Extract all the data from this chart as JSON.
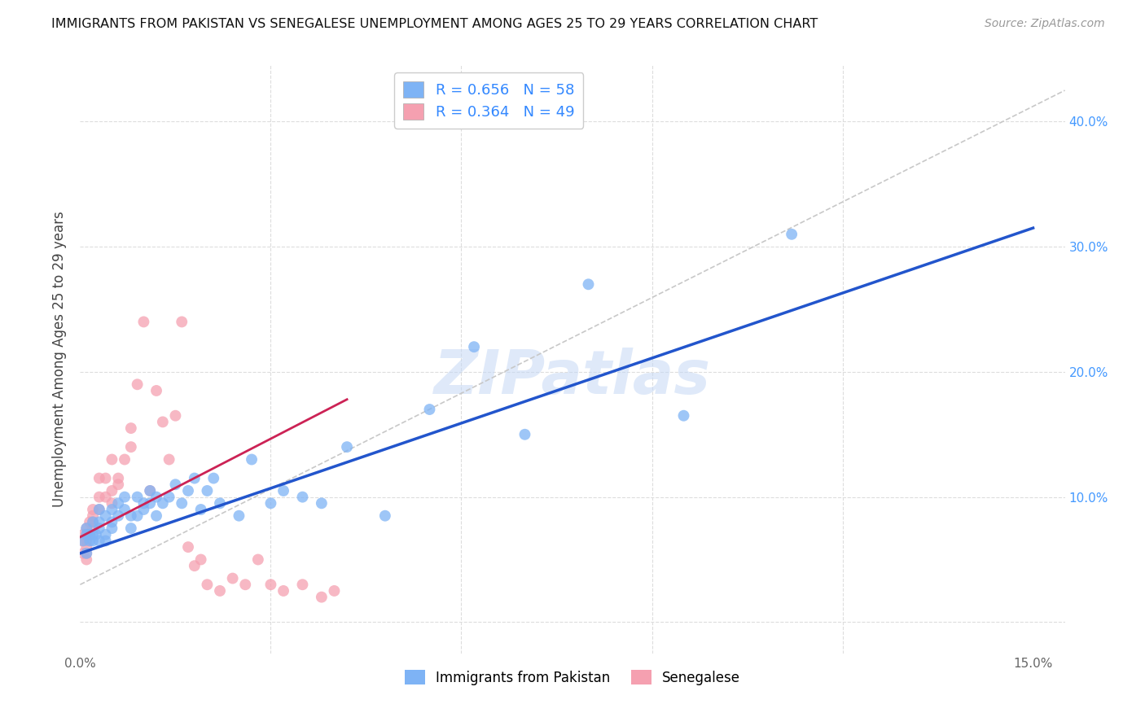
{
  "title": "IMMIGRANTS FROM PAKISTAN VS SENEGALESE UNEMPLOYMENT AMONG AGES 25 TO 29 YEARS CORRELATION CHART",
  "source": "Source: ZipAtlas.com",
  "ylabel": "Unemployment Among Ages 25 to 29 years",
  "xlim": [
    0.0,
    0.155
  ],
  "ylim": [
    -0.025,
    0.445
  ],
  "xtick_positions": [
    0.0,
    0.03,
    0.06,
    0.09,
    0.12,
    0.15
  ],
  "xtick_labels": [
    "0.0%",
    "",
    "",
    "",
    "",
    "15.0%"
  ],
  "ytick_positions": [
    0.0,
    0.1,
    0.2,
    0.3,
    0.4
  ],
  "ytick_labels": [
    "",
    "10.0%",
    "20.0%",
    "30.0%",
    "40.0%"
  ],
  "blue_scatter_color": "#7eb3f5",
  "pink_scatter_color": "#f5a0b0",
  "blue_line_color": "#2255cc",
  "pink_line_color": "#cc2255",
  "diag_color": "#c8c8c8",
  "r_blue": 0.656,
  "n_blue": 58,
  "r_pink": 0.364,
  "n_pink": 49,
  "watermark": "ZIPatlas",
  "blue_r_color": "#3388ff",
  "blue_n_color": "#3388ff",
  "pink_r_color": "#ff6688",
  "pink_n_color": "#3388ff",
  "blue_points_x": [
    0.0005,
    0.001,
    0.001,
    0.001,
    0.0015,
    0.0015,
    0.002,
    0.002,
    0.002,
    0.0025,
    0.003,
    0.003,
    0.003,
    0.003,
    0.004,
    0.004,
    0.004,
    0.005,
    0.005,
    0.005,
    0.006,
    0.006,
    0.007,
    0.007,
    0.008,
    0.008,
    0.009,
    0.009,
    0.01,
    0.01,
    0.011,
    0.011,
    0.012,
    0.012,
    0.013,
    0.014,
    0.015,
    0.016,
    0.017,
    0.018,
    0.019,
    0.02,
    0.021,
    0.022,
    0.025,
    0.027,
    0.03,
    0.032,
    0.035,
    0.038,
    0.042,
    0.048,
    0.055,
    0.062,
    0.07,
    0.08,
    0.095,
    0.112
  ],
  "blue_points_y": [
    0.065,
    0.07,
    0.055,
    0.075,
    0.07,
    0.065,
    0.07,
    0.065,
    0.08,
    0.07,
    0.075,
    0.08,
    0.065,
    0.09,
    0.085,
    0.07,
    0.065,
    0.08,
    0.09,
    0.075,
    0.095,
    0.085,
    0.1,
    0.09,
    0.085,
    0.075,
    0.1,
    0.085,
    0.09,
    0.095,
    0.105,
    0.095,
    0.1,
    0.085,
    0.095,
    0.1,
    0.11,
    0.095,
    0.105,
    0.115,
    0.09,
    0.105,
    0.115,
    0.095,
    0.085,
    0.13,
    0.095,
    0.105,
    0.1,
    0.095,
    0.14,
    0.085,
    0.17,
    0.22,
    0.15,
    0.27,
    0.165,
    0.31
  ],
  "pink_points_x": [
    0.0003,
    0.0005,
    0.0005,
    0.001,
    0.001,
    0.001,
    0.001,
    0.001,
    0.001,
    0.0015,
    0.0015,
    0.002,
    0.002,
    0.002,
    0.002,
    0.003,
    0.003,
    0.003,
    0.004,
    0.004,
    0.005,
    0.005,
    0.005,
    0.006,
    0.006,
    0.007,
    0.008,
    0.008,
    0.009,
    0.01,
    0.011,
    0.012,
    0.013,
    0.014,
    0.015,
    0.016,
    0.017,
    0.018,
    0.019,
    0.02,
    0.022,
    0.024,
    0.026,
    0.028,
    0.03,
    0.032,
    0.035,
    0.038,
    0.04
  ],
  "pink_points_y": [
    0.065,
    0.07,
    0.055,
    0.065,
    0.07,
    0.075,
    0.06,
    0.055,
    0.05,
    0.08,
    0.07,
    0.075,
    0.08,
    0.085,
    0.09,
    0.09,
    0.1,
    0.115,
    0.1,
    0.115,
    0.095,
    0.105,
    0.13,
    0.11,
    0.115,
    0.13,
    0.14,
    0.155,
    0.19,
    0.24,
    0.105,
    0.185,
    0.16,
    0.13,
    0.165,
    0.24,
    0.06,
    0.045,
    0.05,
    0.03,
    0.025,
    0.035,
    0.03,
    0.05,
    0.03,
    0.025,
    0.03,
    0.02,
    0.025
  ],
  "blue_line_x": [
    0.0,
    0.15
  ],
  "blue_line_y": [
    0.055,
    0.315
  ],
  "pink_line_x": [
    0.0,
    0.042
  ],
  "pink_line_y": [
    0.068,
    0.178
  ],
  "diag_line_x": [
    0.0,
    0.155
  ],
  "diag_line_y": [
    0.03,
    0.425
  ]
}
